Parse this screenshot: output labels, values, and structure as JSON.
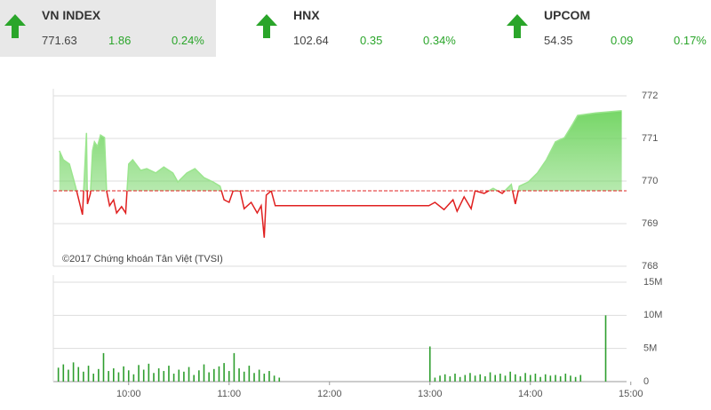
{
  "indices": [
    {
      "name": "VN INDEX",
      "value": "771.63",
      "change": "1.86",
      "change_pct": "0.24%"
    },
    {
      "name": "HNX",
      "value": "102.64",
      "change": "0.35",
      "change_pct": "0.34%"
    },
    {
      "name": "UPCOM",
      "value": "54.35",
      "change": "0.09",
      "change_pct": "0.17%"
    }
  ],
  "chart_data": [
    {
      "type": "line",
      "annotation": "©2017 Chứng khoán Tân Việt (TVSI)",
      "xlim": [
        9.25,
        15
      ],
      "ylim": [
        768,
        772
      ],
      "yticks": [
        768,
        769,
        770,
        771,
        772
      ],
      "grid": true,
      "reference": 769.77,
      "reference_color": "#e02020",
      "x": [
        9.31,
        9.35,
        9.41,
        9.47,
        9.54,
        9.58,
        9.59,
        9.62,
        9.64,
        9.66,
        9.69,
        9.72,
        9.76,
        9.78,
        9.81,
        9.85,
        9.88,
        9.93,
        9.97,
        10,
        10.04,
        10.12,
        10.18,
        10.27,
        10.35,
        10.44,
        10.49,
        10.58,
        10.66,
        10.75,
        10.84,
        10.91,
        10.95,
        11,
        11.04,
        11.11,
        11.15,
        11.22,
        11.28,
        11.32,
        11.35,
        11.37,
        11.42,
        11.46,
        12.26,
        12.99,
        13.05,
        13.14,
        13.23,
        13.27,
        13.34,
        13.41,
        13.45,
        13.54,
        13.63,
        13.72,
        13.81,
        13.85,
        13.89,
        13.98,
        14.07,
        14.16,
        14.25,
        14.34,
        14.42,
        14.47,
        14.65,
        14.91
      ],
      "series": [
        {
          "color": "#e02020",
          "area_color": "#6fd45f",
          "up_line_color": "#9be58e",
          "values": [
            770.71,
            770.5,
            770.4,
            769.88,
            769.21,
            771.13,
            769.46,
            769.71,
            770.71,
            770.92,
            770.81,
            771.08,
            771.02,
            769.77,
            769.42,
            769.56,
            769.25,
            769.4,
            769.25,
            770.4,
            770.5,
            770.25,
            770.29,
            770.19,
            770.33,
            770.19,
            769.98,
            770.19,
            770.29,
            770.08,
            769.98,
            769.88,
            769.56,
            769.5,
            769.77,
            769.77,
            769.35,
            769.5,
            769.25,
            769.42,
            768.67,
            769.67,
            769.77,
            769.42,
            769.42,
            769.42,
            769.5,
            769.33,
            769.56,
            769.29,
            769.63,
            769.35,
            769.77,
            769.71,
            769.83,
            769.71,
            769.92,
            769.46,
            769.88,
            769.98,
            770.19,
            770.5,
            770.92,
            771.02,
            771.33,
            771.54,
            771.6,
            771.65
          ]
        }
      ]
    },
    {
      "type": "bar",
      "xlim": [
        9.25,
        15
      ],
      "ylim": [
        0,
        15
      ],
      "yticks": [
        0,
        {
          "value": 5,
          "label": "5M"
        },
        {
          "value": 10,
          "label": "10M"
        },
        {
          "value": 15,
          "label": "15M"
        }
      ],
      "grid": true,
      "xticks": [
        {
          "value": 10,
          "label": "10:00"
        },
        {
          "value": 11,
          "label": "11:00"
        },
        {
          "value": 12,
          "label": "12:00"
        },
        {
          "value": 13,
          "label": "13:00"
        },
        {
          "value": 14,
          "label": "14:00"
        },
        {
          "value": 15,
          "label": "15:00"
        }
      ],
      "color": "#2e9e2e",
      "x": [
        9.3,
        9.35,
        9.4,
        9.45,
        9.5,
        9.55,
        9.6,
        9.65,
        9.7,
        9.75,
        9.8,
        9.85,
        9.9,
        9.95,
        10,
        10.05,
        10.1,
        10.15,
        10.2,
        10.25,
        10.3,
        10.35,
        10.4,
        10.45,
        10.5,
        10.55,
        10.6,
        10.65,
        10.7,
        10.75,
        10.8,
        10.85,
        10.9,
        10.95,
        11,
        11.05,
        11.1,
        11.15,
        11.2,
        11.25,
        11.3,
        11.35,
        11.4,
        11.45,
        11.5,
        13,
        13.05,
        13.1,
        13.15,
        13.2,
        13.25,
        13.3,
        13.35,
        13.4,
        13.45,
        13.5,
        13.55,
        13.6,
        13.65,
        13.7,
        13.75,
        13.8,
        13.85,
        13.9,
        13.95,
        14,
        14.05,
        14.1,
        14.15,
        14.2,
        14.25,
        14.3,
        14.35,
        14.4,
        14.45,
        14.5,
        14.75
      ],
      "values": [
        2.1,
        2.6,
        1.8,
        2.9,
        2.2,
        1.5,
        2.4,
        1.2,
        1.9,
        4.3,
        1.6,
        2.0,
        1.4,
        2.3,
        1.7,
        1.1,
        2.5,
        1.8,
        2.7,
        1.3,
        2.0,
        1.6,
        2.4,
        1.2,
        1.8,
        1.5,
        2.2,
        1.0,
        1.7,
        2.6,
        1.4,
        1.9,
        2.3,
        2.8,
        1.6,
        4.3,
        2.0,
        1.5,
        2.4,
        1.3,
        1.8,
        1.2,
        1.6,
        0.9,
        0.6,
        5.3,
        0.6,
        0.9,
        1.1,
        0.8,
        1.2,
        0.7,
        1.0,
        1.3,
        0.9,
        1.1,
        0.8,
        1.4,
        1.0,
        1.2,
        0.9,
        1.5,
        1.1,
        0.8,
        1.3,
        1.0,
        1.2,
        0.7,
        1.1,
        0.9,
        1.0,
        0.8,
        1.2,
        0.9,
        0.7,
        1.0,
        10.0
      ]
    }
  ]
}
